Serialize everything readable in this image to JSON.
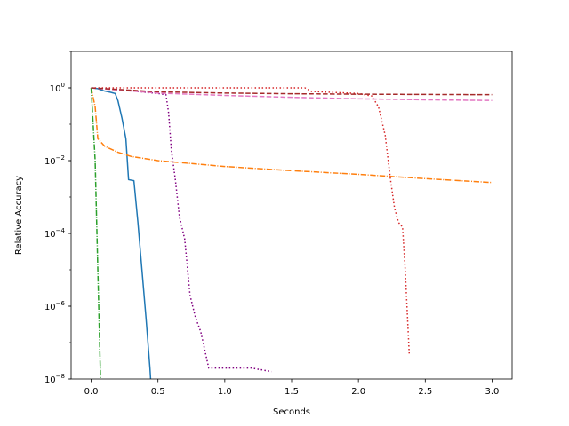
{
  "chart_data": {
    "type": "line",
    "title": "",
    "xlabel": "Seconds",
    "ylabel": "Relative Accuracy",
    "xlim": [
      -0.15,
      3.15
    ],
    "ylim": [
      1e-08,
      10
    ],
    "yscale": "log",
    "grid": false,
    "legend": "none",
    "x_ticks": [
      {
        "value": 0.0,
        "label": "0.0"
      },
      {
        "value": 0.5,
        "label": "0.5"
      },
      {
        "value": 1.0,
        "label": "1.0"
      },
      {
        "value": 1.5,
        "label": "1.5"
      },
      {
        "value": 2.0,
        "label": "2.0"
      },
      {
        "value": 2.5,
        "label": "2.5"
      },
      {
        "value": 3.0,
        "label": "3.0"
      }
    ],
    "y_ticks": [
      {
        "value": 1e-08,
        "base": "10",
        "exp": "−8"
      },
      {
        "value": 1e-06,
        "base": "10",
        "exp": "−6"
      },
      {
        "value": 0.0001,
        "base": "10",
        "exp": "−4"
      },
      {
        "value": 0.01,
        "base": "10",
        "exp": "−2"
      },
      {
        "value": 1,
        "base": "10",
        "exp": "0"
      }
    ],
    "series": [
      {
        "color": "#1f77b4",
        "dash": "solid",
        "points": [
          [
            0.0,
            1.0
          ],
          [
            0.05,
            0.95
          ],
          [
            0.1,
            0.82
          ],
          [
            0.15,
            0.75
          ],
          [
            0.18,
            0.7
          ],
          [
            0.2,
            0.45
          ],
          [
            0.23,
            0.15
          ],
          [
            0.26,
            0.04
          ],
          [
            0.28,
            0.003
          ],
          [
            0.32,
            0.0028
          ],
          [
            0.35,
            0.0002
          ],
          [
            0.38,
            1e-05
          ],
          [
            0.41,
            5e-07
          ],
          [
            0.44,
            2e-08
          ],
          [
            0.445,
            1e-08
          ]
        ]
      },
      {
        "color": "#ff7f0e",
        "dash": "dashdot",
        "points": [
          [
            0.0,
            1.0
          ],
          [
            0.03,
            0.3
          ],
          [
            0.05,
            0.04
          ],
          [
            0.1,
            0.025
          ],
          [
            0.2,
            0.017
          ],
          [
            0.3,
            0.013
          ],
          [
            0.5,
            0.01
          ],
          [
            0.8,
            0.008
          ],
          [
            1.0,
            0.0069
          ],
          [
            1.5,
            0.0053
          ],
          [
            2.0,
            0.0042
          ],
          [
            2.5,
            0.0032
          ],
          [
            3.0,
            0.0025
          ]
        ]
      },
      {
        "color": "#2ca02c",
        "dash": "dashdot",
        "points": [
          [
            0.0,
            1.0
          ],
          [
            0.03,
            0.01
          ],
          [
            0.05,
            1e-05
          ],
          [
            0.07,
            1e-08
          ]
        ]
      },
      {
        "color": "#d62728",
        "dash": "dotted",
        "points": [
          [
            0.0,
            1.0
          ],
          [
            1.6,
            1.0
          ],
          [
            1.65,
            0.8
          ],
          [
            2.0,
            0.7
          ],
          [
            2.1,
            0.6
          ],
          [
            2.15,
            0.3
          ],
          [
            2.2,
            0.05
          ],
          [
            2.24,
            0.003
          ],
          [
            2.27,
            0.0005
          ],
          [
            2.3,
            0.0002
          ],
          [
            2.33,
            0.00015
          ],
          [
            2.35,
            1e-05
          ],
          [
            2.38,
            5e-08
          ]
        ]
      },
      {
        "color": "#800080",
        "dash": "dotted",
        "points": [
          [
            0.0,
            1.0
          ],
          [
            0.2,
            0.9
          ],
          [
            0.5,
            0.7
          ],
          [
            0.56,
            0.65
          ],
          [
            0.58,
            0.2
          ],
          [
            0.6,
            0.02
          ],
          [
            0.63,
            0.003
          ],
          [
            0.66,
            0.0003
          ],
          [
            0.7,
            7e-05
          ],
          [
            0.74,
            2e-06
          ],
          [
            0.78,
            5e-07
          ],
          [
            0.82,
            2e-07
          ],
          [
            0.88,
            2e-08
          ],
          [
            1.0,
            2e-08
          ],
          [
            1.2,
            2e-08
          ],
          [
            1.35,
            1.6e-08
          ]
        ]
      },
      {
        "color": "#e377c2",
        "dash": "dashed",
        "points": [
          [
            0.0,
            1.0
          ],
          [
            0.5,
            0.72
          ],
          [
            1.0,
            0.62
          ],
          [
            1.5,
            0.55
          ],
          [
            2.0,
            0.5
          ],
          [
            2.5,
            0.47
          ],
          [
            3.0,
            0.45
          ]
        ]
      },
      {
        "color": "#a52a2a",
        "dash": "dashed",
        "points": [
          [
            0.0,
            1.0
          ],
          [
            0.5,
            0.78
          ],
          [
            1.0,
            0.72
          ],
          [
            1.5,
            0.69
          ],
          [
            2.0,
            0.67
          ],
          [
            2.5,
            0.66
          ],
          [
            3.0,
            0.65
          ]
        ]
      }
    ]
  }
}
